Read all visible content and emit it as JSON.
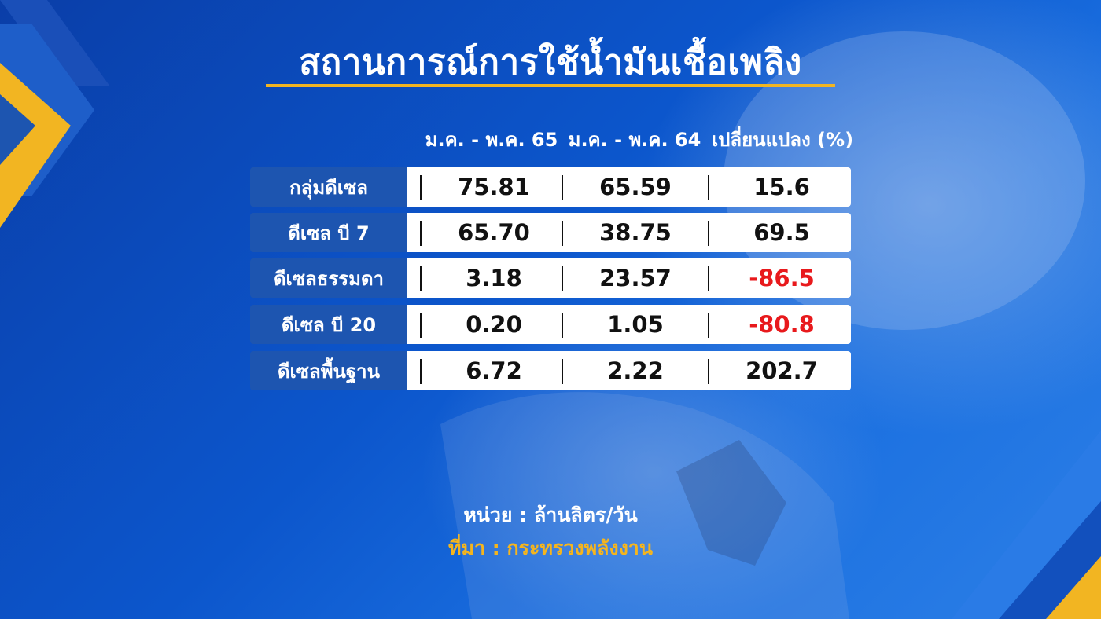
{
  "title": "สถานการณ์การใช้น้ำมันเชื้อเพลิง",
  "columns": [
    "ม.ค. - พ.ค. 65",
    "ม.ค. - พ.ค. 64",
    "เปลี่ยนแปลง (%)"
  ],
  "rows": [
    {
      "label": "กลุ่มดีเซล",
      "v65": "75.81",
      "v64": "65.59",
      "change": "15.6",
      "negative": false
    },
    {
      "label": "ดีเซล บี 7",
      "v65": "65.70",
      "v64": "38.75",
      "change": "69.5",
      "negative": false
    },
    {
      "label": "ดีเซลธรรมดา",
      "v65": "3.18",
      "v64": "23.57",
      "change": "-86.5",
      "negative": true
    },
    {
      "label": "ดีเซล บี 20",
      "v65": "0.20",
      "v64": "1.05",
      "change": "-80.8",
      "negative": true
    },
    {
      "label": "ดีเซลพื้นฐาน",
      "v65": "6.72",
      "v64": "2.22",
      "change": "202.7",
      "negative": false
    }
  ],
  "unit": "หน่วย : ล้านลิตร/วัน",
  "source": "ที่มา : กระทรวงพลังงาน",
  "colors": {
    "accent": "#f2b522",
    "label_bg": "#1d55b0",
    "negative": "#e8191c",
    "source": "#f5b51e"
  }
}
